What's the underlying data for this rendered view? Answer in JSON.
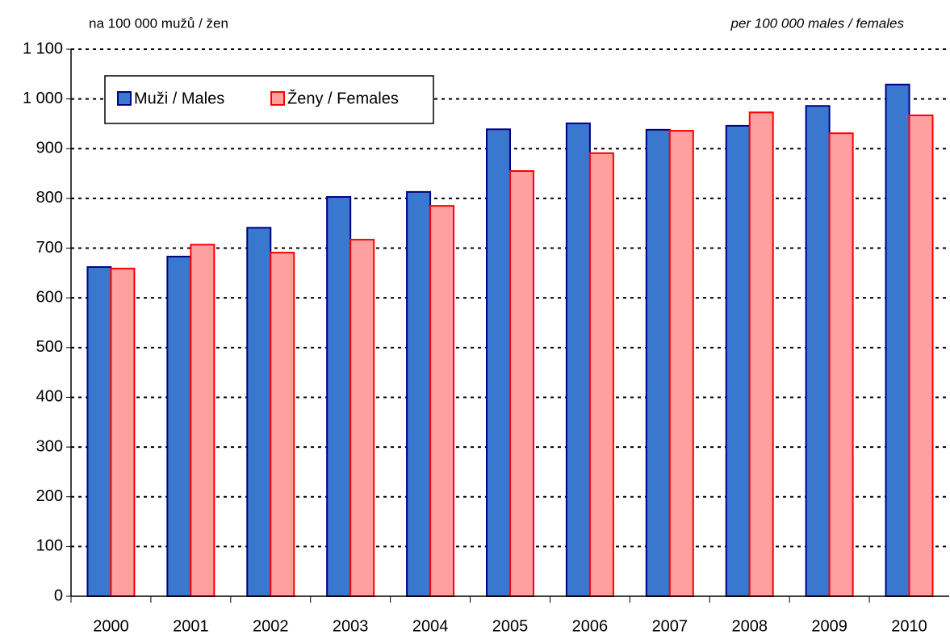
{
  "chart_data": {
    "type": "bar",
    "subtitle": "na 100 000 mužů / žen",
    "subtitle_en": "per 100 000 males /  females",
    "categories": [
      "2000",
      "2001",
      "2002",
      "2003",
      "2004",
      "2005",
      "2006",
      "2007",
      "2008",
      "2009",
      "2010"
    ],
    "series": [
      {
        "name": "Muži / Males",
        "color": "#3a78d0",
        "edge": "#000080",
        "values": [
          662,
          683,
          741,
          803,
          813,
          939,
          951,
          938,
          946,
          986,
          1029
        ]
      },
      {
        "name": "Ženy / Females",
        "color": "#ffa0a0",
        "edge": "#ff0000",
        "values": [
          659,
          707,
          691,
          717,
          785,
          855,
          891,
          936,
          973,
          931,
          967
        ]
      }
    ],
    "ylim": [
      0,
      1100
    ],
    "yticks": [
      0,
      100,
      200,
      300,
      400,
      500,
      600,
      700,
      800,
      900,
      {
        "value": 1000,
        "label": "1 000"
      },
      {
        "value": 1100,
        "label": "1 100"
      }
    ],
    "grid": true,
    "legend": "upper left"
  }
}
